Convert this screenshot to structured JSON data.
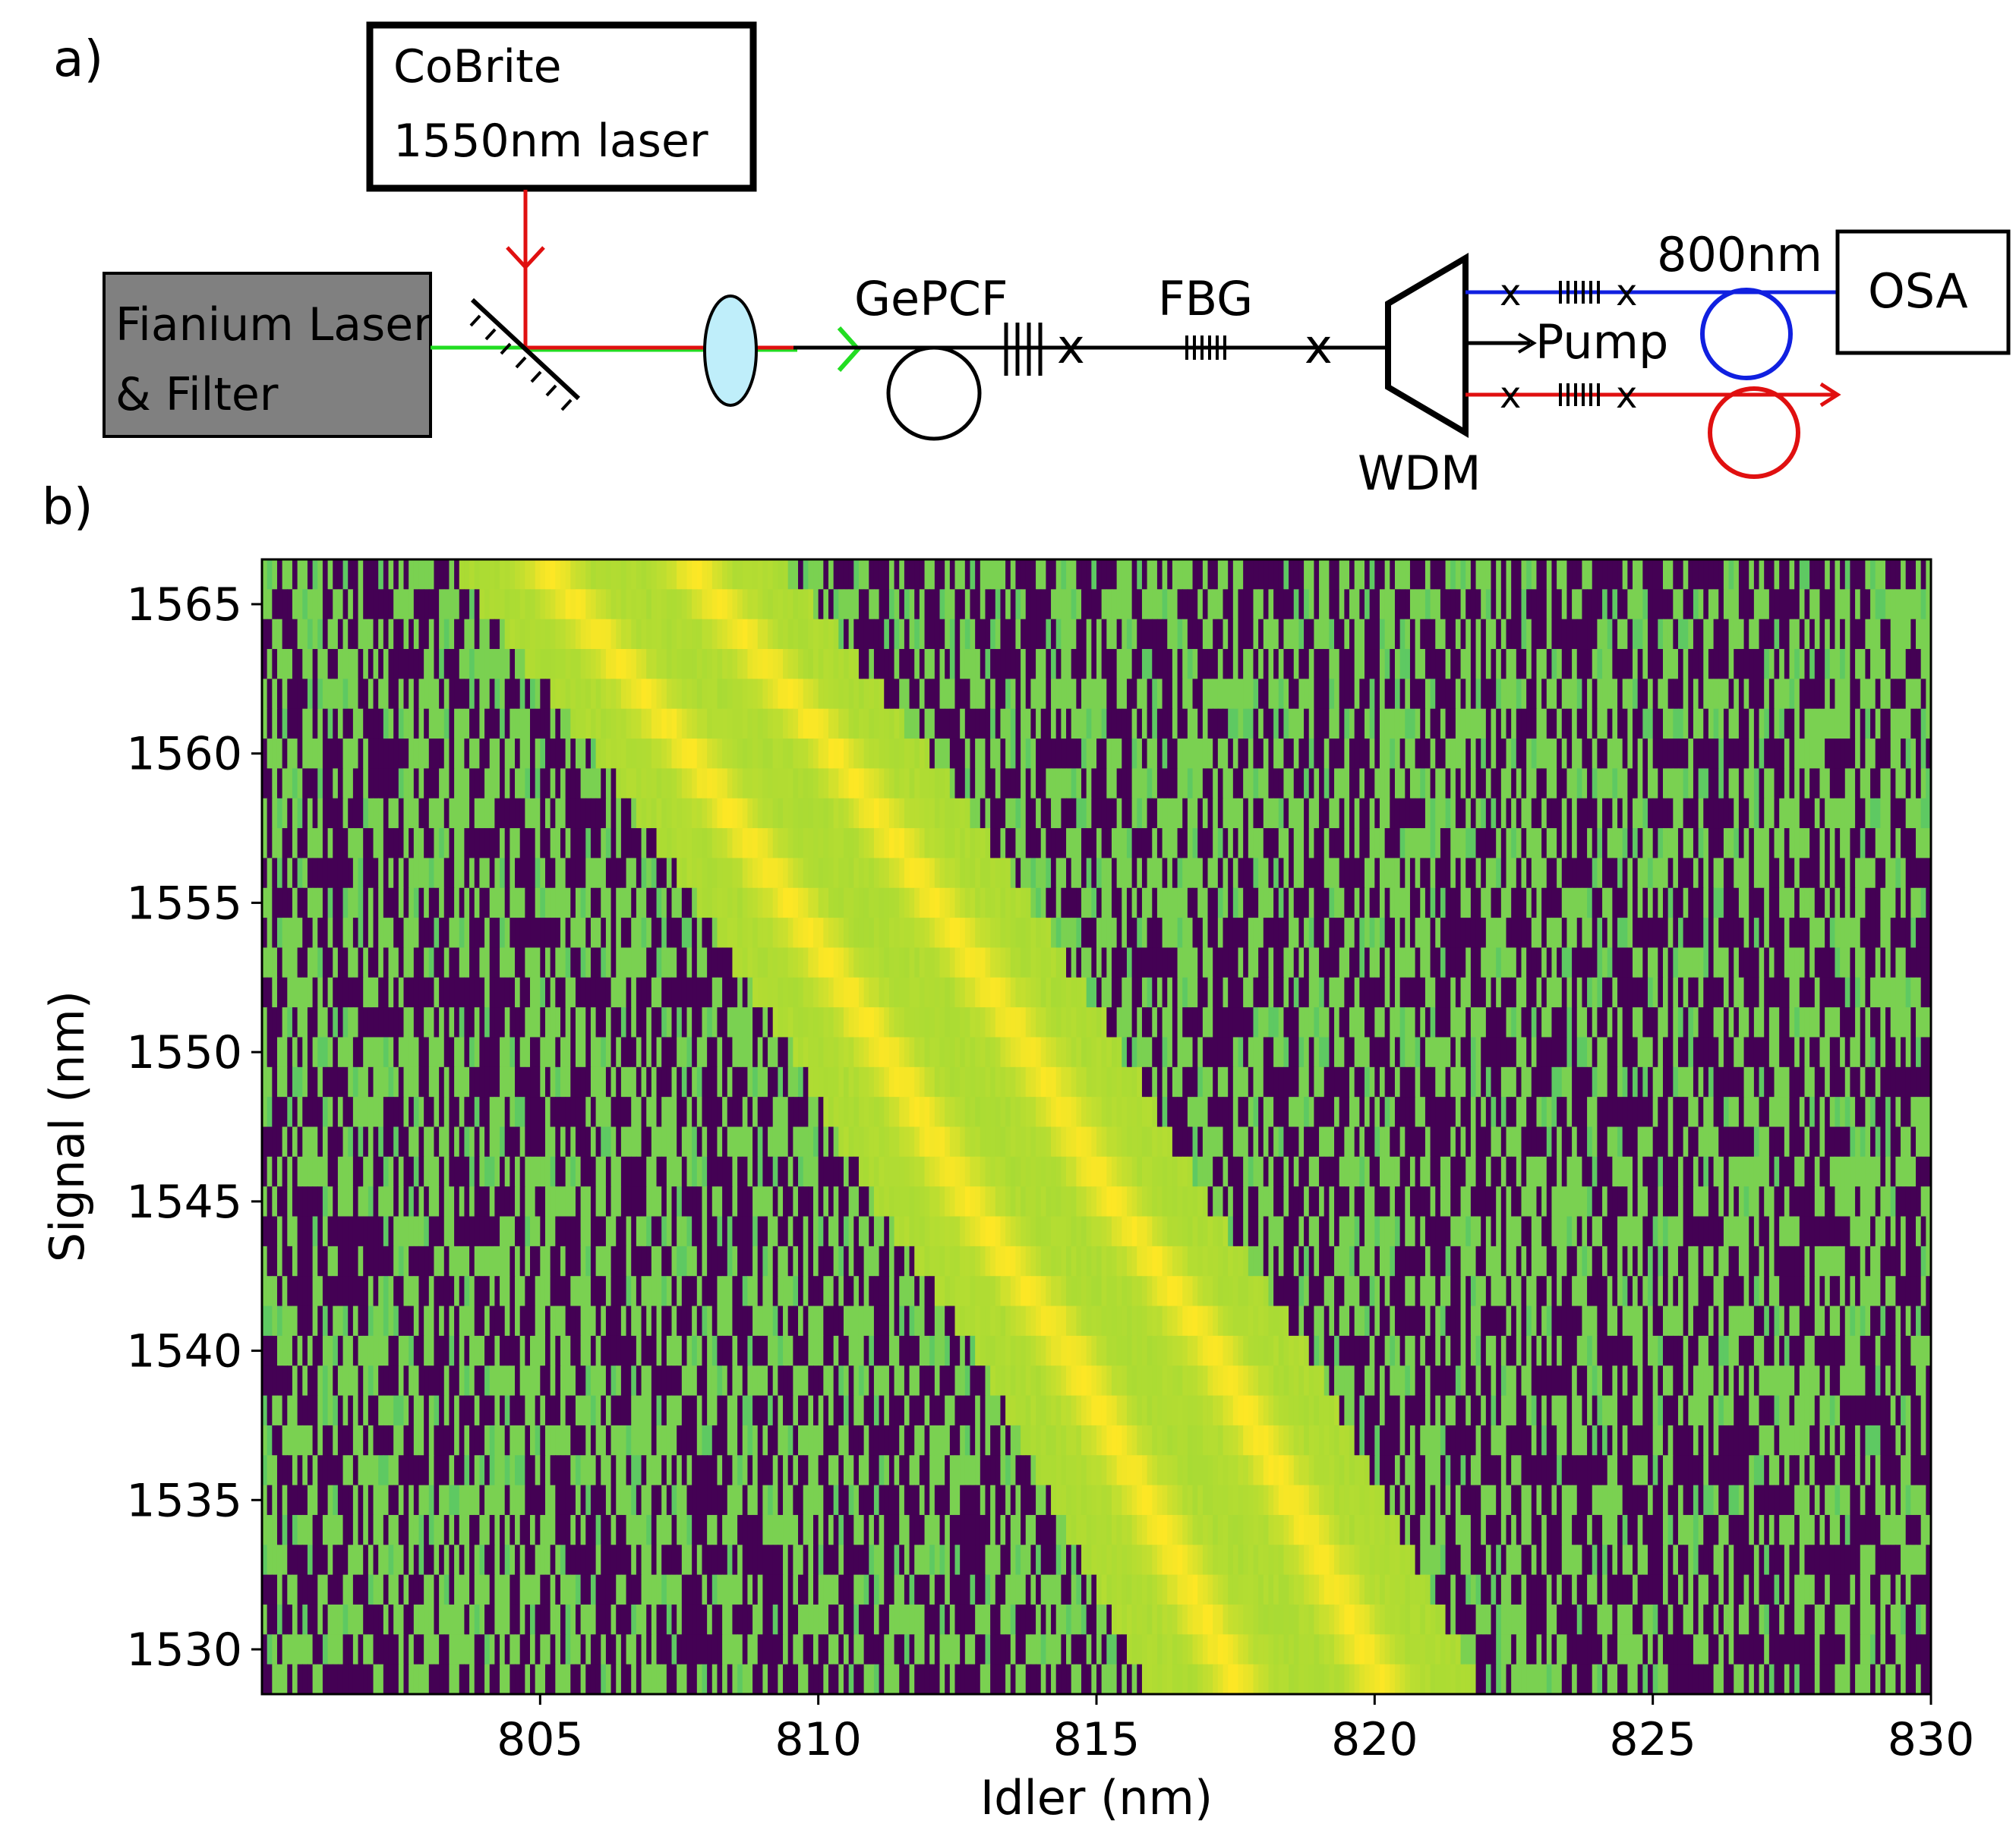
{
  "panel_a": {
    "label": "a)",
    "cobrite_line1": "CoBrite",
    "cobrite_line2": "1550nm laser",
    "fianium_line1": "Fianium Laser",
    "fianium_line2": "& Filter",
    "gepcf": "GePCF",
    "fbg": "FBG",
    "wdm": "WDM",
    "pump": "Pump",
    "wl800": "800nm",
    "osa": "OSA",
    "colors": {
      "green": "#22dd22",
      "red": "#e01010",
      "blue": "#1020e0",
      "lens": "#bfeefa",
      "fianium_box": "#808080"
    }
  },
  "panel_b": {
    "label": "b)"
  },
  "chart_data": {
    "type": "heatmap",
    "title": "",
    "xlabel": "Idler (nm)",
    "ylabel": "Signal (nm)",
    "xlim": [
      800,
      830
    ],
    "ylim": [
      1528.5,
      1566.5
    ],
    "x_ticks": [
      805,
      810,
      815,
      820,
      825,
      830
    ],
    "y_ticks": [
      1530,
      1535,
      1540,
      1545,
      1550,
      1555,
      1560,
      1565
    ],
    "colormap": "viridis (thresholded: dark purple #440154 background, green #7ad151, yellow #fde725 peak)",
    "band_centerline": [
      {
        "signal": 1566,
        "idler": 806.5
      },
      {
        "signal": 1560,
        "idler": 809.0
      },
      {
        "signal": 1555,
        "idler": 810.8
      },
      {
        "signal": 1550,
        "idler": 812.5
      },
      {
        "signal": 1545,
        "idler": 814.0
      },
      {
        "signal": 1540,
        "idler": 815.8
      },
      {
        "signal": 1535,
        "idler": 817.2
      },
      {
        "signal": 1529,
        "idler": 818.8
      }
    ],
    "band_half_width_nm": 3.0,
    "peak_line_offsets_nm": [
      -1.3,
      1.3
    ]
  }
}
